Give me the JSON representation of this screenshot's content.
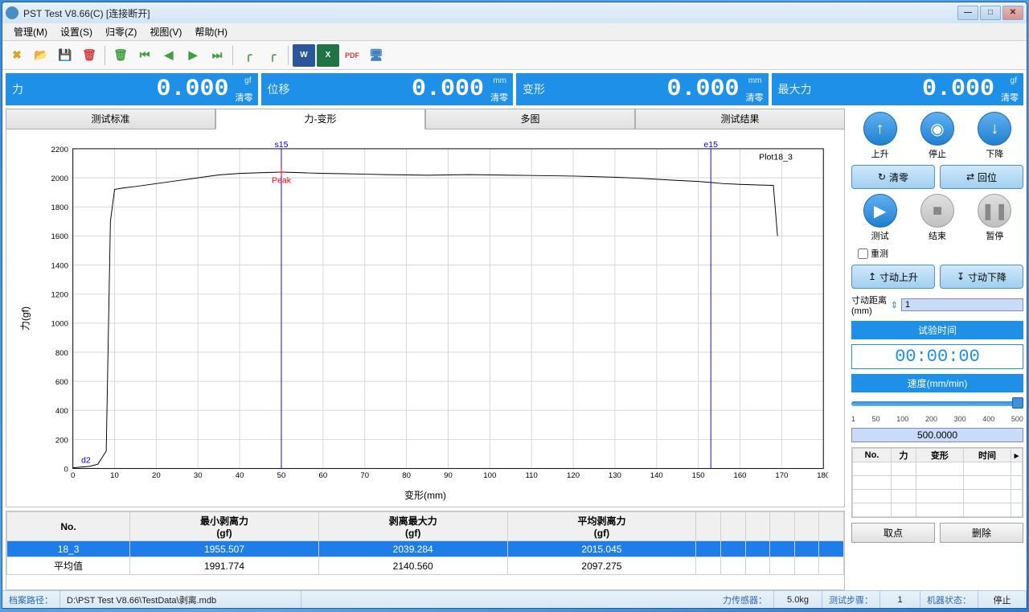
{
  "window": {
    "title": "PST Test V8.66(C)   [连接断开]"
  },
  "menus": [
    "管理(M)",
    "设置(S)",
    "归零(Z)",
    "视图(V)",
    "帮助(H)"
  ],
  "toolbar_icons": [
    {
      "name": "settings-icon",
      "glyph": "✖",
      "color": "#e0a020",
      "sep": false
    },
    {
      "name": "open-icon",
      "glyph": "📂",
      "color": "#d0a040",
      "sep": false
    },
    {
      "name": "save-icon",
      "glyph": "💾",
      "color": "#d0a040",
      "sep": false
    },
    {
      "name": "delete-db-icon",
      "glyph": "🗑",
      "color": "#d04040",
      "sep": true
    },
    {
      "name": "trash-icon",
      "glyph": "🗑",
      "color": "#40a040",
      "sep": false
    },
    {
      "name": "seek-start-icon",
      "glyph": "⏮",
      "color": "#40a040",
      "sep": false
    },
    {
      "name": "seek-prev-icon",
      "glyph": "◀",
      "color": "#40a040",
      "sep": false
    },
    {
      "name": "seek-next-icon",
      "glyph": "▶",
      "color": "#40a040",
      "sep": false
    },
    {
      "name": "seek-end-icon",
      "glyph": "⏭",
      "color": "#40a040",
      "sep": true
    },
    {
      "name": "curve1-icon",
      "glyph": "╭",
      "color": "#40a040",
      "sep": false
    },
    {
      "name": "curve2-icon",
      "glyph": "╭",
      "color": "#40a040",
      "sep": true
    },
    {
      "name": "word-icon",
      "glyph": "W",
      "color": "#ffffff",
      "bg": "#2b579a",
      "sep": false
    },
    {
      "name": "excel-icon",
      "glyph": "X",
      "color": "#ffffff",
      "bg": "#217346",
      "sep": false
    },
    {
      "name": "pdf-icon",
      "glyph": "PDF",
      "color": "#d04040",
      "sep": false
    },
    {
      "name": "monitor-icon",
      "glyph": "🖥",
      "color": "#4080c0",
      "sep": false
    }
  ],
  "readouts": [
    {
      "label": "力",
      "value": "0.000",
      "unit": "gf",
      "clear": "清零"
    },
    {
      "label": "位移",
      "value": "0.000",
      "unit": "mm",
      "clear": "清零"
    },
    {
      "label": "变形",
      "value": "0.000",
      "unit": "mm",
      "clear": "清零"
    },
    {
      "label": "最大力",
      "value": "0.000",
      "unit": "gf",
      "clear": "清零"
    }
  ],
  "tabs": [
    "测试标准",
    "力-变形",
    "多图",
    "测试结果"
  ],
  "active_tab": 1,
  "chart": {
    "title": "Plot18_3",
    "ylabel": "力(gf)",
    "xlabel": "变形(mm)",
    "ylim": [
      0,
      2200
    ],
    "ytick_step": 200,
    "xlim": [
      0,
      180
    ],
    "xtick_step": 10,
    "grid_color": "#d8d8d8",
    "line_color": "#000000",
    "marker_s15": {
      "x": 50,
      "label": "s15",
      "peak_label": "Peak",
      "color": "#0000ff",
      "peak_color": "#ff0000"
    },
    "marker_e15": {
      "x": 153,
      "label": "e15",
      "color": "#0000ff"
    },
    "marker_d2": {
      "x": 2,
      "label": "d2",
      "color": "#0000ff"
    },
    "curve": [
      [
        0,
        5
      ],
      [
        2,
        10
      ],
      [
        4,
        15
      ],
      [
        6,
        30
      ],
      [
        8,
        120
      ],
      [
        9,
        1700
      ],
      [
        10,
        1920
      ],
      [
        12,
        1930
      ],
      [
        15,
        1940
      ],
      [
        20,
        1960
      ],
      [
        25,
        1980
      ],
      [
        30,
        2000
      ],
      [
        35,
        2020
      ],
      [
        40,
        2030
      ],
      [
        45,
        2035
      ],
      [
        50,
        2039
      ],
      [
        55,
        2035
      ],
      [
        60,
        2030
      ],
      [
        65,
        2028
      ],
      [
        70,
        2025
      ],
      [
        75,
        2022
      ],
      [
        80,
        2020
      ],
      [
        85,
        2018
      ],
      [
        90,
        2020
      ],
      [
        95,
        2022
      ],
      [
        100,
        2020
      ],
      [
        105,
        2018
      ],
      [
        110,
        2016
      ],
      [
        115,
        2014
      ],
      [
        120,
        2012
      ],
      [
        125,
        2008
      ],
      [
        130,
        2004
      ],
      [
        135,
        1998
      ],
      [
        140,
        1990
      ],
      [
        145,
        1982
      ],
      [
        150,
        1975
      ],
      [
        153,
        1968
      ],
      [
        156,
        1960
      ],
      [
        160,
        1955
      ],
      [
        165,
        1950
      ],
      [
        168,
        1948
      ],
      [
        169,
        1600
      ]
    ]
  },
  "results_table": {
    "cols": [
      "No.",
      "最小剥离力\n(gf)",
      "剥离最大力\n(gf)",
      "平均剥离力\n(gf)",
      "",
      "",
      "",
      "",
      "",
      ""
    ],
    "rows": [
      {
        "sel": true,
        "cells": [
          "18_3",
          "1955.507",
          "2039.284",
          "2015.045",
          "",
          "",
          "",
          "",
          "",
          ""
        ]
      },
      {
        "sel": false,
        "cells": [
          "平均值",
          "1991.774",
          "2140.560",
          "2097.275",
          "",
          "",
          "",
          "",
          "",
          ""
        ]
      }
    ]
  },
  "right": {
    "motion": [
      {
        "label": "上升",
        "glyph": "↑"
      },
      {
        "label": "停止",
        "glyph": "◉"
      },
      {
        "label": "下降",
        "glyph": "↓"
      }
    ],
    "clear_btn": "清零",
    "return_btn": "回位",
    "test_btns": [
      {
        "label": "测试",
        "glyph": "▶",
        "active": true
      },
      {
        "label": "结束",
        "glyph": "■",
        "active": false
      },
      {
        "label": "暂停",
        "glyph": "❚❚",
        "active": false
      }
    ],
    "retest": "重测",
    "jog_up": "寸动上升",
    "jog_down": "寸动下降",
    "jog_dist_label": "寸动距离(mm)",
    "jog_dist": "1",
    "time_label": "试验时间",
    "time_value": "00:00:00",
    "speed_label": "速度(mm/min)",
    "speed_ticks": [
      "1",
      "50",
      "100",
      "200",
      "300",
      "400",
      "500"
    ],
    "speed_value": "500.0000",
    "mini_cols": [
      "No.",
      "力",
      "变形",
      "时间"
    ],
    "pick_btn": "取点",
    "del_btn": "删除"
  },
  "status": {
    "path_label": "档案路径：",
    "path": "D:\\PST Test V8.66\\TestData\\剥离.mdb",
    "sensor_label": "力传感器：",
    "sensor": "5.0kg",
    "step_label": "测试步骤：",
    "step": "1",
    "state_label": "机器状态：",
    "state": "停止"
  }
}
